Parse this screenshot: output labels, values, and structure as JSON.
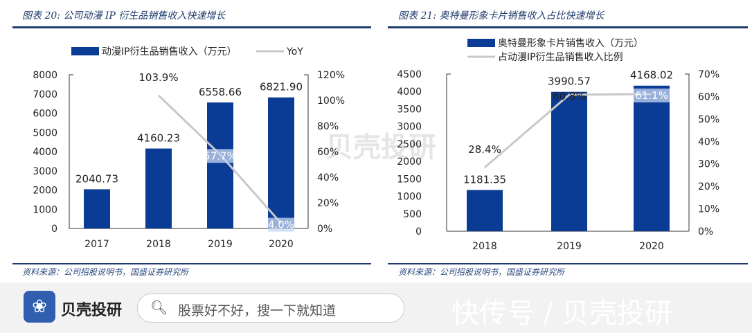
{
  "chart_data": [
    {
      "type": "bar+line",
      "title": "图表 20:  公司动漫 IP 衍生品销售收入快速增长",
      "categories": [
        "2017",
        "2018",
        "2019",
        "2020"
      ],
      "series": [
        {
          "name": "动漫IP衍生品销售收入（万元）",
          "type": "bar",
          "axis": "left",
          "values": [
            2040.73,
            4160.23,
            6558.66,
            6821.9
          ],
          "labels": [
            "2040.73",
            "4160.23",
            "6558.66",
            "6821.90"
          ],
          "color": "#0a3c96"
        },
        {
          "name": "YoY",
          "type": "line",
          "axis": "right",
          "values": [
            null,
            103.9,
            57.7,
            4.0
          ],
          "labels": [
            "",
            "103.9%",
            "57.7%",
            "4.0%"
          ],
          "color": "#c8c8c8"
        }
      ],
      "ylim": [
        0,
        8000
      ],
      "yticks": [
        "0",
        "1000",
        "2000",
        "3000",
        "4000",
        "5000",
        "6000",
        "7000",
        "8000"
      ],
      "y2lim": [
        0,
        120
      ],
      "y2ticks": [
        "0%",
        "20%",
        "40%",
        "60%",
        "80%",
        "100%",
        "120%"
      ],
      "legend": "top",
      "source": "资料来源：公司招股说明书，国盛证券研究所"
    },
    {
      "type": "bar+line",
      "title": "图表 21:  奥特曼形象卡片销售收入占比快速增长",
      "categories": [
        "2018",
        "2019",
        "2020"
      ],
      "series": [
        {
          "name": "奥特曼形象卡片销售收入（万元）",
          "type": "bar",
          "axis": "left",
          "values": [
            1181.35,
            3990.57,
            4168.02
          ],
          "labels": [
            "1181.35",
            "3990.57",
            "4168.02"
          ],
          "color": "#0a3c96"
        },
        {
          "name": "占动漫IP衍生品销售收入比例",
          "type": "line",
          "axis": "right",
          "values": [
            28.4,
            60.8,
            61.1
          ],
          "labels": [
            "28.4%",
            "60.8%",
            "61.1%"
          ],
          "color": "#c8c8c8"
        }
      ],
      "ylim": [
        0,
        4500
      ],
      "yticks": [
        "0",
        "500",
        "1000",
        "1500",
        "2000",
        "2500",
        "3000",
        "3500",
        "4000",
        "4500"
      ],
      "y2lim": [
        0,
        70
      ],
      "y2ticks": [
        "0%",
        "10%",
        "20%",
        "30%",
        "40%",
        "50%",
        "60%",
        "70%"
      ],
      "legend": "top",
      "source": "资料来源：公司招股说明书，国盛证券研究所"
    }
  ],
  "watermark": "贝壳投研",
  "footer": {
    "logo_text": "贝壳投研",
    "search_placeholder": "股票好不好，搜一下就知道",
    "right_text": "快传号 / 贝壳投研",
    "search_icon": "search-icon"
  }
}
